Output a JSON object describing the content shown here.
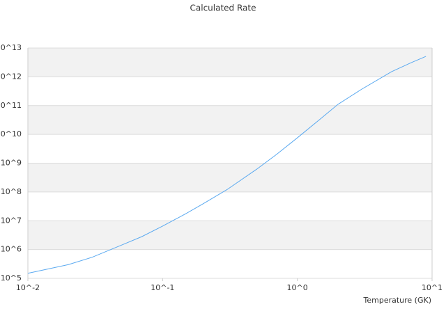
{
  "chart_data": {
    "type": "line",
    "title": "Calculated Rate",
    "x_label": "Temperature (GK)",
    "xscale": "log",
    "yscale": "log",
    "grid": true,
    "banded_background": true,
    "xlim": [
      0.01,
      10
    ],
    "xticks": [
      {
        "value": 0.01,
        "label": "10^-2"
      },
      {
        "value": 0.1,
        "label": "10^-1"
      },
      {
        "value": 1,
        "label": "10^0"
      },
      {
        "value": 10,
        "label": "10^1"
      }
    ],
    "ylim": [
      100000,
      10000000000000
    ],
    "yticks": [
      {
        "value": 100000,
        "label": "10^5"
      },
      {
        "value": 1000000,
        "label": "10^6"
      },
      {
        "value": 10000000,
        "label": "10^7"
      },
      {
        "value": 100000000,
        "label": "10^8"
      },
      {
        "value": 1000000000,
        "label": "10^9"
      },
      {
        "value": 10000000000,
        "label": "10^10"
      },
      {
        "value": 100000000000,
        "label": "10^11"
      },
      {
        "value": 1000000000000,
        "label": "10^12"
      },
      {
        "value": 10000000000000,
        "label": "10^13"
      }
    ],
    "x": [
      0.01,
      0.02,
      0.03,
      0.05,
      0.07,
      0.1,
      0.15,
      0.2,
      0.3,
      0.5,
      0.7,
      1,
      1.5,
      2,
      3,
      5,
      7,
      9
    ],
    "series": [
      {
        "color": "#5aa9f0",
        "values": [
          150000,
          300000,
          540000,
          1450000,
          2800000,
          6500000,
          18000000,
          39000000,
          120000000,
          620000000,
          2000000000,
          7600000000,
          36000000000,
          110000000000,
          370000000000,
          1500000000000,
          3100000000000,
          5100000000000
        ]
      }
    ]
  }
}
